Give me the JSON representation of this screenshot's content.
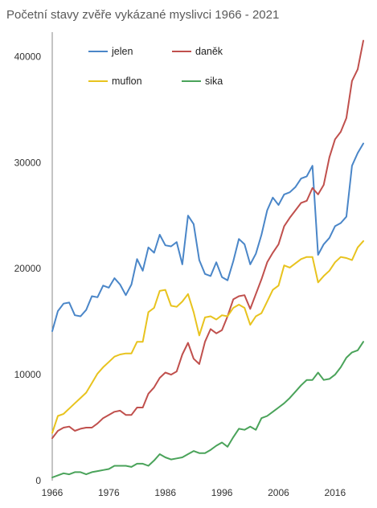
{
  "chart_data": {
    "type": "line",
    "title": "Početní stavy zvěře vykázané myslivci 1966 - 2021",
    "xlabel": "",
    "ylabel": "",
    "xlim": [
      1966,
      2021
    ],
    "ylim": [
      0,
      42000
    ],
    "x_ticks": [
      1966,
      1976,
      1986,
      1996,
      2006,
      2016
    ],
    "y_ticks": [
      0,
      10000,
      20000,
      30000,
      40000
    ],
    "y_tick_labels": [
      "0",
      "10000",
      "20000",
      "30000",
      "40000"
    ],
    "grid": false,
    "legend_placement": "top",
    "x": [
      1966,
      1967,
      1968,
      1969,
      1970,
      1971,
      1972,
      1973,
      1974,
      1975,
      1976,
      1977,
      1978,
      1979,
      1980,
      1981,
      1982,
      1983,
      1984,
      1985,
      1986,
      1987,
      1988,
      1989,
      1990,
      1991,
      1992,
      1993,
      1994,
      1995,
      1996,
      1997,
      1998,
      1999,
      2000,
      2001,
      2002,
      2003,
      2004,
      2005,
      2006,
      2007,
      2008,
      2009,
      2010,
      2011,
      2012,
      2013,
      2014,
      2015,
      2016,
      2017,
      2018,
      2019,
      2020,
      2021
    ],
    "series": [
      {
        "name": "jelen",
        "color": "#4a86c8",
        "values": [
          14100,
          16000,
          16700,
          16800,
          15600,
          15500,
          16100,
          17400,
          17300,
          18400,
          18200,
          19100,
          18500,
          17500,
          18500,
          20900,
          19800,
          22000,
          21500,
          23200,
          22200,
          22100,
          22500,
          20400,
          25000,
          24200,
          20800,
          19500,
          19300,
          20600,
          19200,
          18900,
          20700,
          22800,
          22300,
          20400,
          21400,
          23200,
          25500,
          26700,
          26000,
          27000,
          27200,
          27700,
          28500,
          28700,
          29700,
          21300,
          22300,
          22900,
          24000,
          24300,
          24900,
          29700,
          30900,
          31800
        ]
      },
      {
        "name": "daněk",
        "color": "#c0504d",
        "values": [
          4000,
          4700,
          5000,
          5100,
          4700,
          4900,
          5000,
          5000,
          5400,
          5900,
          6200,
          6500,
          6600,
          6200,
          6200,
          6900,
          6900,
          8200,
          8800,
          9700,
          10200,
          10000,
          10300,
          11900,
          13000,
          11500,
          11000,
          13100,
          14300,
          13900,
          14200,
          15500,
          17100,
          17400,
          17500,
          16200,
          17600,
          19000,
          20600,
          21500,
          22300,
          24000,
          24800,
          25500,
          26200,
          26400,
          27600,
          27000,
          27900,
          30500,
          32200,
          32900,
          34200,
          37700,
          38800,
          41500
        ]
      },
      {
        "name": "muflon",
        "color": "#e8c31e",
        "values": [
          4500,
          6100,
          6300,
          6800,
          7300,
          7800,
          8300,
          9200,
          10100,
          10700,
          11200,
          11700,
          11900,
          12000,
          12000,
          13100,
          13100,
          15900,
          16300,
          17900,
          18000,
          16500,
          16400,
          16900,
          17600,
          15900,
          13700,
          15400,
          15500,
          15200,
          15600,
          15500,
          16300,
          16600,
          16300,
          14700,
          15500,
          15800,
          16900,
          18000,
          18400,
          20300,
          20100,
          20500,
          20900,
          21100,
          21100,
          18700,
          19300,
          19800,
          20600,
          21100,
          21000,
          20800,
          22000,
          22600
        ]
      },
      {
        "name": "sika",
        "color": "#4aa35a",
        "values": [
          300,
          500,
          700,
          600,
          800,
          800,
          600,
          800,
          900,
          1000,
          1100,
          1400,
          1400,
          1400,
          1300,
          1600,
          1600,
          1400,
          1900,
          2500,
          2200,
          2000,
          2100,
          2200,
          2500,
          2800,
          2600,
          2600,
          2900,
          3300,
          3600,
          3200,
          4100,
          4900,
          4800,
          5100,
          4800,
          5900,
          6100,
          6500,
          6900,
          7300,
          7800,
          8400,
          9000,
          9500,
          9500,
          10200,
          9500,
          9600,
          10000,
          10700,
          11600,
          12100,
          12300,
          13100
        ]
      }
    ]
  }
}
